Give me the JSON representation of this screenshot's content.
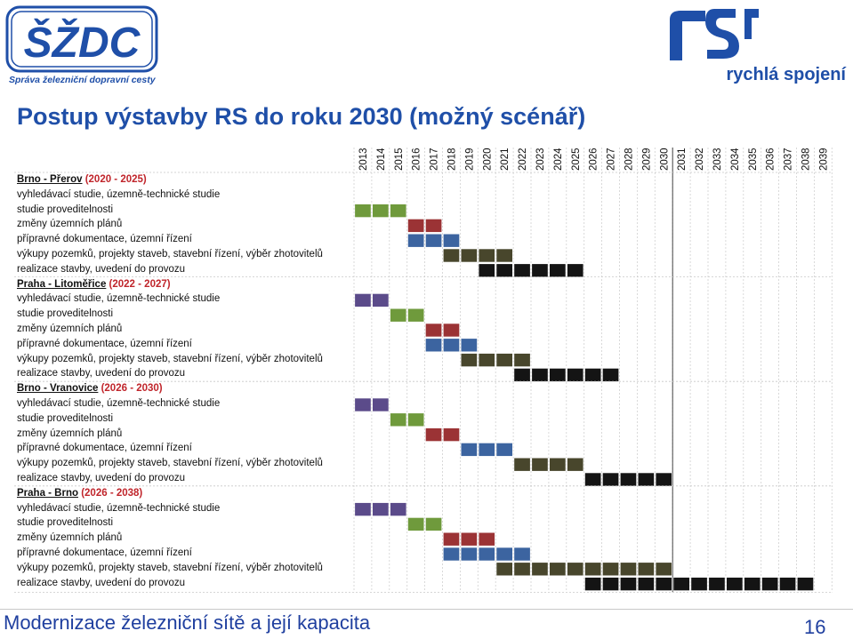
{
  "header": {
    "szdc_logo_text": "ŠŽDC",
    "szdc_subtitle": "Správa železniční dopravní cesty",
    "rs_logo_text": "rychlá spojení"
  },
  "title": "Postup výstavby RS do roku 2030 (možný scénář)",
  "footer": {
    "text": "Modernizace železniční sítě a její kapacita",
    "page": "16"
  },
  "colors": {
    "study": "#5b4b8a",
    "feasibility": "#6f9a3c",
    "zoning": "#9b3335",
    "permit": "#3c64a0",
    "purchase": "#48462c",
    "construction": "#141414"
  },
  "chart_data": {
    "type": "gantt",
    "years": [
      2013,
      2014,
      2015,
      2016,
      2017,
      2018,
      2019,
      2020,
      2021,
      2022,
      2023,
      2024,
      2025,
      2026,
      2027,
      2028,
      2029,
      2030,
      2031,
      2032,
      2033,
      2034,
      2035,
      2036,
      2037,
      2038,
      2039
    ],
    "projects": [
      {
        "name": "Brno - Přerov",
        "range": "(2020 - 2025)",
        "tasks": [
          {
            "label": "vyhledávací studie, územně-technické studie",
            "kind": "study",
            "years": []
          },
          {
            "label": "studie proveditelnosti",
            "kind": "feasibility",
            "years": [
              2013,
              2014,
              2015
            ]
          },
          {
            "label": "změny územních plánů",
            "kind": "zoning",
            "years": [
              2016,
              2017
            ]
          },
          {
            "label": "přípravné dokumentace, územní řízení",
            "kind": "permit",
            "years": [
              2016,
              2017,
              2018
            ]
          },
          {
            "label": "výkupy pozemků, projekty staveb, stavební řízení, výběr zhotovitelů",
            "kind": "purchase",
            "years": [
              2018,
              2019,
              2020,
              2021
            ]
          },
          {
            "label": "realizace stavby, uvedení do provozu",
            "kind": "construction",
            "years": [
              2020,
              2021,
              2022,
              2023,
              2024,
              2025
            ]
          }
        ]
      },
      {
        "name": "Praha - Litoměřice",
        "range": "(2022 - 2027)",
        "tasks": [
          {
            "label": "vyhledávací studie, územně-technické studie",
            "kind": "study",
            "years": [
              2013,
              2014
            ]
          },
          {
            "label": "studie proveditelnosti",
            "kind": "feasibility",
            "years": [
              2015,
              2016
            ]
          },
          {
            "label": "změny územních plánů",
            "kind": "zoning",
            "years": [
              2017,
              2018
            ]
          },
          {
            "label": "přípravné dokumentace, územní řízení",
            "kind": "permit",
            "years": [
              2017,
              2018,
              2019
            ]
          },
          {
            "label": "výkupy pozemků, projekty staveb, stavební řízení, výběr zhotovitelů",
            "kind": "purchase",
            "years": [
              2019,
              2020,
              2021,
              2022
            ]
          },
          {
            "label": "realizace stavby, uvedení do provozu",
            "kind": "construction",
            "years": [
              2022,
              2023,
              2024,
              2025,
              2026,
              2027
            ]
          }
        ]
      },
      {
        "name": "Brno - Vranovice",
        "range": "(2026 - 2030)",
        "tasks": [
          {
            "label": "vyhledávací studie, územně-technické studie",
            "kind": "study",
            "years": [
              2013,
              2014
            ]
          },
          {
            "label": "studie proveditelnosti",
            "kind": "feasibility",
            "years": [
              2015,
              2016
            ]
          },
          {
            "label": "změny územních plánů",
            "kind": "zoning",
            "years": [
              2017,
              2018
            ]
          },
          {
            "label": "přípravné dokumentace, územní řízení",
            "kind": "permit",
            "years": [
              2019,
              2020,
              2021
            ]
          },
          {
            "label": "výkupy pozemků, projekty staveb, stavební řízení, výběr zhotovitelů",
            "kind": "purchase",
            "years": [
              2022,
              2023,
              2024,
              2025
            ]
          },
          {
            "label": "realizace stavby, uvedení do provozu",
            "kind": "construction",
            "years": [
              2026,
              2027,
              2028,
              2029,
              2030
            ]
          }
        ]
      },
      {
        "name": "Praha - Brno",
        "range": "(2026 - 2038)",
        "tasks": [
          {
            "label": "vyhledávací studie, územně-technické studie",
            "kind": "study",
            "years": [
              2013,
              2014,
              2015
            ]
          },
          {
            "label": "studie proveditelnosti",
            "kind": "feasibility",
            "years": [
              2016,
              2017
            ]
          },
          {
            "label": "změny územních plánů",
            "kind": "zoning",
            "years": [
              2018,
              2019,
              2020
            ]
          },
          {
            "label": "přípravné dokumentace, územní řízení",
            "kind": "permit",
            "years": [
              2018,
              2019,
              2020,
              2021,
              2022
            ]
          },
          {
            "label": "výkupy pozemků, projekty staveb, stavební řízení, výběr zhotovitelů",
            "kind": "purchase",
            "years": [
              2021,
              2022,
              2023,
              2024,
              2025,
              2026,
              2027,
              2028,
              2029,
              2030
            ]
          },
          {
            "label": "realizace stavby, uvedení do provozu",
            "kind": "construction",
            "years": [
              2026,
              2027,
              2028,
              2029,
              2030,
              2031,
              2032,
              2033,
              2034,
              2035,
              2036,
              2037,
              2038
            ]
          }
        ]
      }
    ]
  }
}
